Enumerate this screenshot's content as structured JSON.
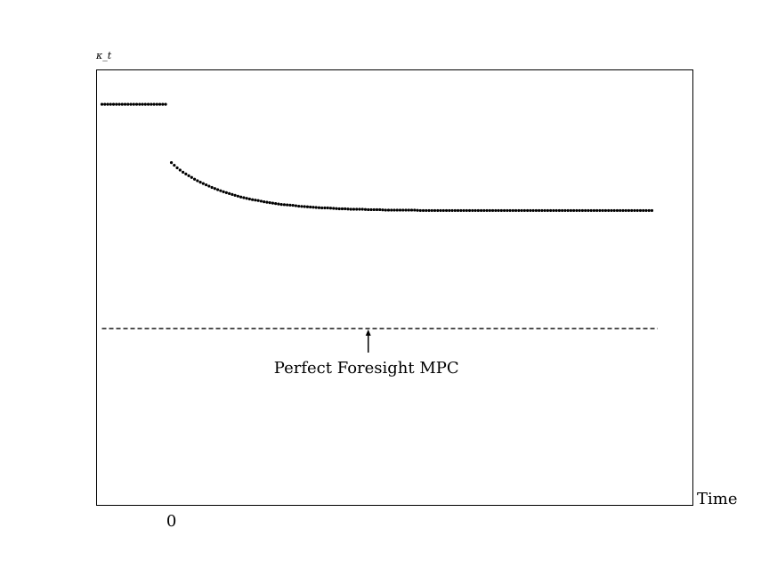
{
  "chart_data": {
    "type": "scatter",
    "ylabel": "κ_t",
    "xlabel": "Time",
    "x_tick_labels": [
      {
        "x": 0,
        "label": "0"
      }
    ],
    "xlim": [
      -13,
      90
    ],
    "ylim": [
      0,
      1
    ],
    "grid": false,
    "legend": "none",
    "series": [
      {
        "style": "dotted",
        "x": [
          -12,
          -11,
          -10,
          -9,
          -8,
          -7,
          -6,
          -5,
          -4,
          -3,
          -2,
          -1
        ],
        "y": [
          0.92,
          0.92,
          0.92,
          0.92,
          0.92,
          0.92,
          0.92,
          0.92,
          0.92,
          0.92,
          0.92,
          0.92
        ]
      },
      {
        "style": "dotted",
        "x": [
          0,
          1,
          2,
          3,
          4,
          5,
          6,
          7,
          8,
          9,
          10,
          11,
          12,
          13,
          14,
          15,
          16,
          17,
          18,
          19,
          20,
          21,
          22,
          23,
          24,
          25,
          26,
          27,
          28,
          29,
          30,
          31,
          32,
          33,
          34,
          35,
          36,
          37,
          38,
          39,
          40,
          41,
          42,
          43,
          44,
          45,
          46,
          47,
          48,
          49,
          50,
          51,
          52,
          53,
          54,
          55,
          56,
          57,
          58,
          59,
          60,
          61,
          62,
          63,
          64,
          65,
          66,
          67,
          68,
          69,
          70,
          71,
          72,
          73,
          74,
          75,
          76,
          77,
          78,
          79,
          80,
          81,
          82,
          83
        ],
        "y": [
          0.786,
          0.774,
          0.764,
          0.756,
          0.748,
          0.741,
          0.735,
          0.729,
          0.724,
          0.719,
          0.715,
          0.711,
          0.707,
          0.704,
          0.701,
          0.699,
          0.696,
          0.694,
          0.692,
          0.69,
          0.689,
          0.688,
          0.686,
          0.685,
          0.684,
          0.683,
          0.682,
          0.682,
          0.681,
          0.68,
          0.68,
          0.679,
          0.679,
          0.679,
          0.678,
          0.678,
          0.678,
          0.677,
          0.677,
          0.677,
          0.677,
          0.677,
          0.677,
          0.676,
          0.676,
          0.676,
          0.676,
          0.676,
          0.676,
          0.676,
          0.676,
          0.676,
          0.676,
          0.676,
          0.676,
          0.676,
          0.676,
          0.676,
          0.676,
          0.676,
          0.676,
          0.676,
          0.676,
          0.676,
          0.676,
          0.676,
          0.676,
          0.676,
          0.676,
          0.676,
          0.676,
          0.676,
          0.676,
          0.676,
          0.676,
          0.676,
          0.676,
          0.676,
          0.676,
          0.676,
          0.676,
          0.676,
          0.676,
          0.676
        ]
      },
      {
        "style": "dashed",
        "x": [
          -12,
          84
        ],
        "y": [
          0.405,
          0.405
        ]
      }
    ],
    "annotations": [
      {
        "text": "Perfect Foresight MPC",
        "arrow_to_x": 34,
        "arrow_to_y": 0.405
      }
    ]
  }
}
